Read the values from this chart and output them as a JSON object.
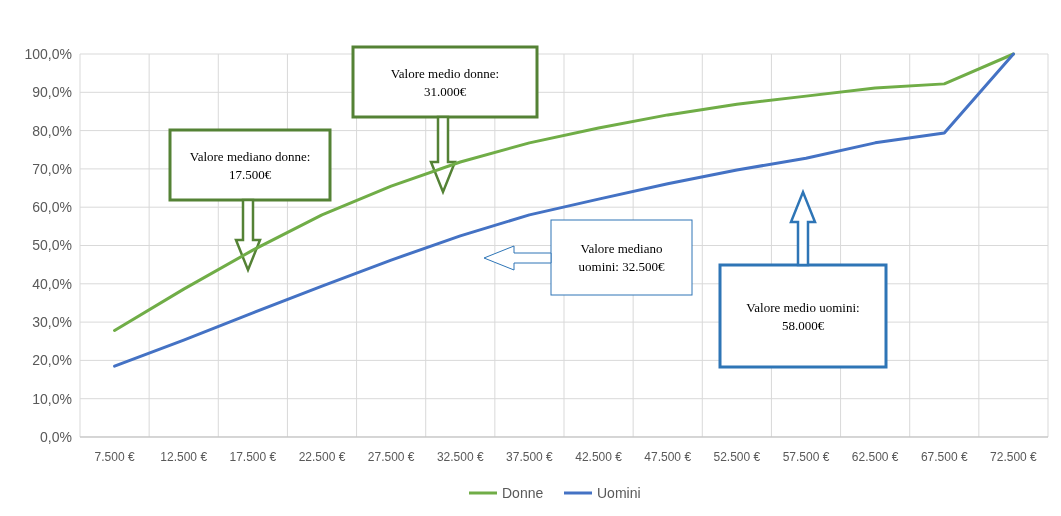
{
  "chart_data": {
    "type": "line",
    "categories": [
      "7.500 €",
      "12.500 €",
      "17.500 €",
      "22.500 €",
      "27.500 €",
      "32.500 €",
      "37.500 €",
      "42.500 €",
      "47.500 €",
      "52.500 €",
      "57.500 €",
      "62.500 €",
      "67.500 €",
      "72.500 €"
    ],
    "series": [
      {
        "name": "Donne",
        "color": "#70ad47",
        "values": [
          27.8,
          38.6,
          48.8,
          58.0,
          65.5,
          71.8,
          76.8,
          80.7,
          84.1,
          86.9,
          89.0,
          91.1,
          92.2,
          100
        ]
      },
      {
        "name": "Uomini",
        "color": "#4472c4",
        "values": [
          18.5,
          25.3,
          32.4,
          39.4,
          46.2,
          52.5,
          58.0,
          62.1,
          66.1,
          69.7,
          72.8,
          76.8,
          79.4,
          100
        ]
      }
    ],
    "ylim": [
      0,
      100
    ],
    "yticks": [
      {
        "value": 0,
        "label": "0,0%"
      },
      {
        "value": 10,
        "label": "10,0%"
      },
      {
        "value": 20,
        "label": "20,0%"
      },
      {
        "value": 30,
        "label": "30,0%"
      },
      {
        "value": 40,
        "label": "40,0%"
      },
      {
        "value": 50,
        "label": "50,0%"
      },
      {
        "value": 60,
        "label": "60,0%"
      },
      {
        "value": 70,
        "label": "70,0%"
      },
      {
        "value": 80,
        "label": "80,0%"
      },
      {
        "value": 90,
        "label": "90,0%"
      },
      {
        "value": 100,
        "label": "100,0%"
      }
    ],
    "grid": true,
    "legend": "bottom",
    "marker": "none",
    "line_style": "solid",
    "annotations": [
      "Valore mediano donne: 17.500€",
      "Valore medio donne: 31.000€",
      "Valore mediano uomini: 32.500€",
      "Valore medio uomini: 58.000€"
    ]
  }
}
